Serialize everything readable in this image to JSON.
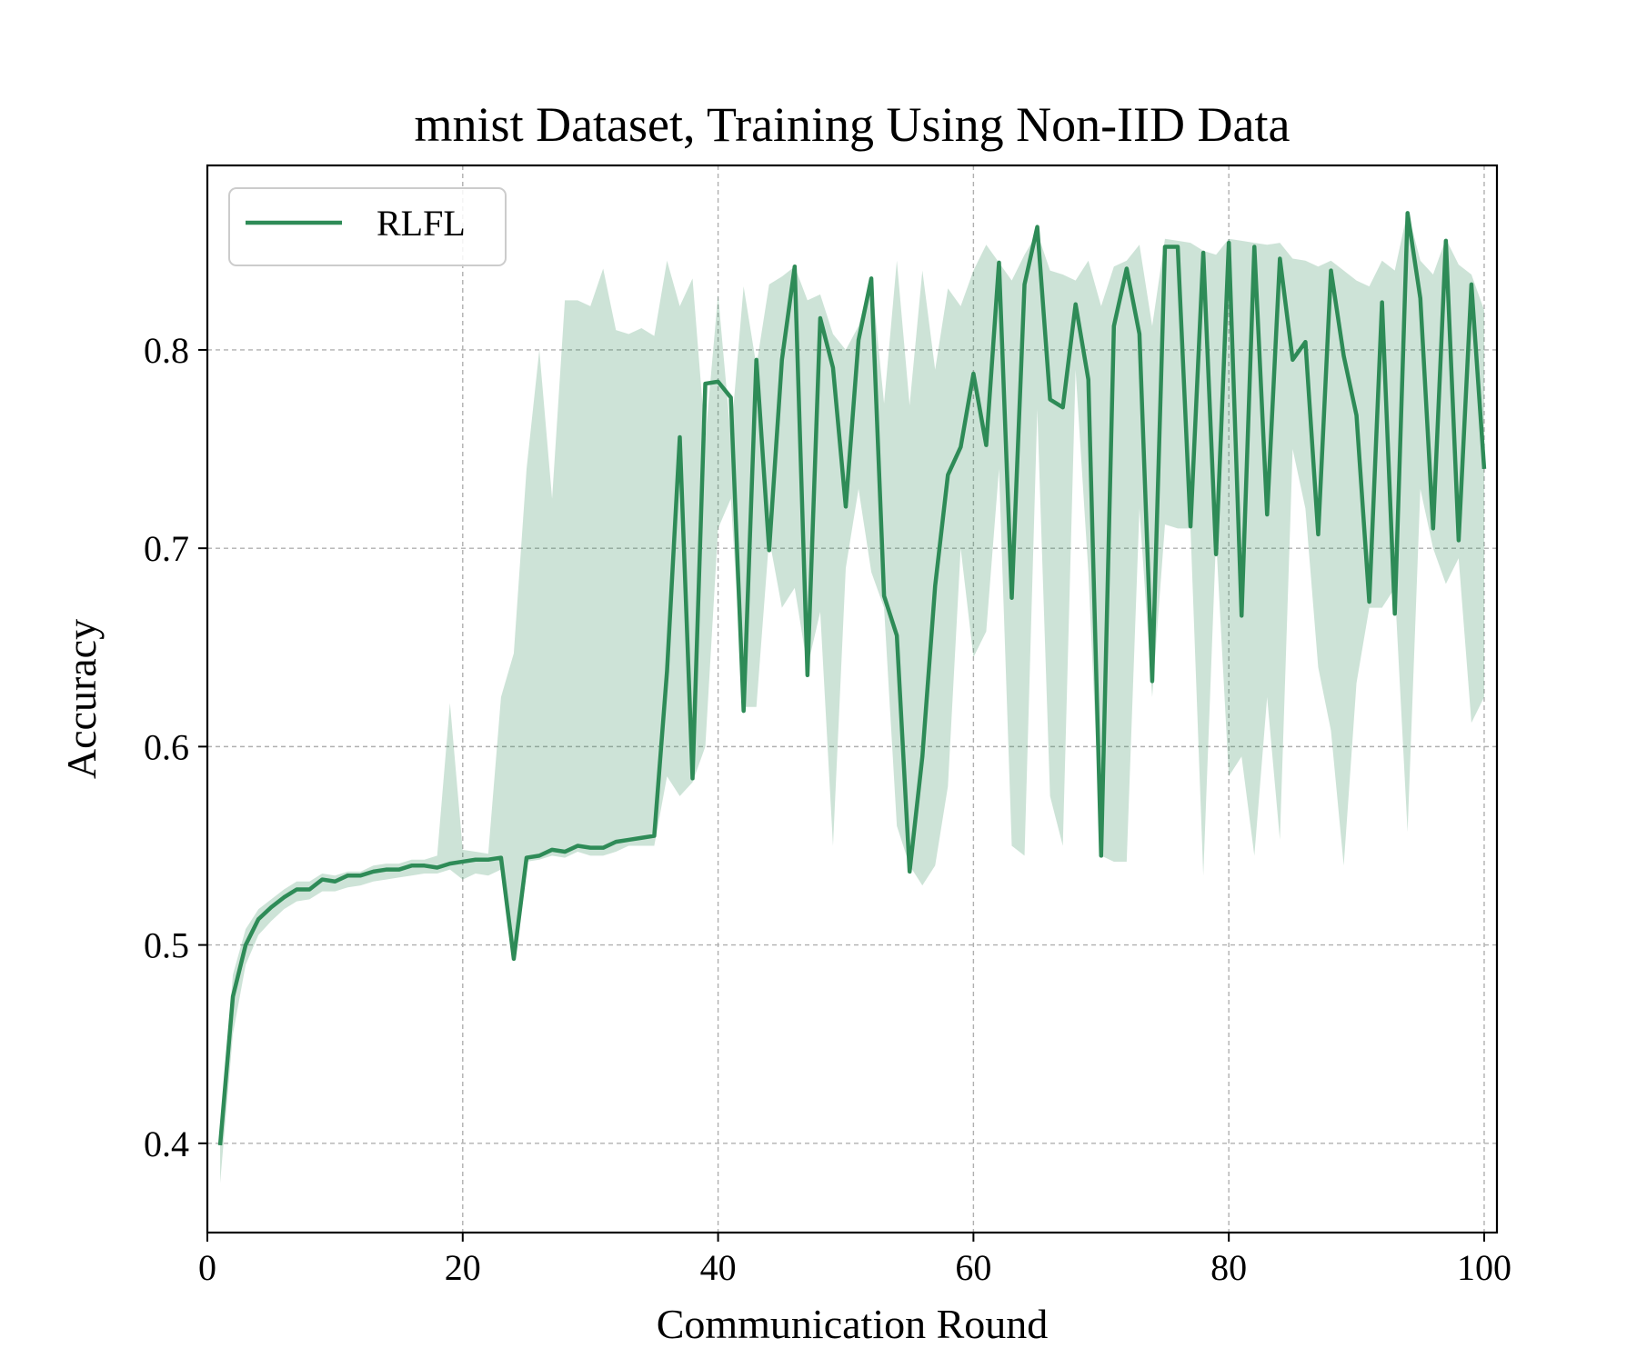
{
  "chart_data": {
    "type": "line",
    "title": "mnist Dataset, Training Using Non-IID Data",
    "xlabel": "Communication Round",
    "ylabel": "Accuracy",
    "xlim": [
      0,
      101
    ],
    "ylim": [
      0.355,
      0.893
    ],
    "xticks": [
      0,
      20,
      40,
      60,
      80,
      100
    ],
    "xtick_labels": [
      "0",
      "20",
      "40",
      "60",
      "80",
      "100"
    ],
    "yticks": [
      0.4,
      0.5,
      0.6,
      0.7,
      0.8
    ],
    "ytick_labels": [
      "0.4",
      "0.5",
      "0.6",
      "0.7",
      "0.8"
    ],
    "grid": true,
    "legend": {
      "position": "top-left",
      "entries": [
        "RLFL"
      ]
    },
    "colors": {
      "line": "#2e8b57",
      "band": "#2e8b57",
      "band_opacity": 0.24
    },
    "x": [
      1,
      2,
      3,
      4,
      5,
      6,
      7,
      8,
      9,
      10,
      11,
      12,
      13,
      14,
      15,
      16,
      17,
      18,
      19,
      20,
      21,
      22,
      23,
      24,
      25,
      26,
      27,
      28,
      29,
      30,
      31,
      32,
      33,
      34,
      35,
      36,
      37,
      38,
      39,
      40,
      41,
      42,
      43,
      44,
      45,
      46,
      47,
      48,
      49,
      50,
      51,
      52,
      53,
      54,
      55,
      56,
      57,
      58,
      59,
      60,
      61,
      62,
      63,
      64,
      65,
      66,
      67,
      68,
      69,
      70,
      71,
      72,
      73,
      74,
      75,
      76,
      77,
      78,
      79,
      80,
      81,
      82,
      83,
      84,
      85,
      86,
      87,
      88,
      89,
      90,
      91,
      92,
      93,
      94,
      95,
      96,
      97,
      98,
      99,
      100
    ],
    "series": [
      {
        "name": "RLFL",
        "values": [
          0.399,
          0.474,
          0.5,
          0.513,
          0.519,
          0.524,
          0.528,
          0.528,
          0.533,
          0.532,
          0.535,
          0.535,
          0.537,
          0.538,
          0.538,
          0.54,
          0.54,
          0.539,
          0.541,
          0.542,
          0.543,
          0.543,
          0.544,
          0.493,
          0.544,
          0.545,
          0.548,
          0.547,
          0.55,
          0.549,
          0.549,
          0.552,
          0.553,
          0.554,
          0.555,
          0.638,
          0.756,
          0.584,
          0.783,
          0.784,
          0.776,
          0.618,
          0.795,
          0.699,
          0.795,
          0.842,
          0.636,
          0.816,
          0.791,
          0.721,
          0.805,
          0.836,
          0.676,
          0.656,
          0.537,
          0.595,
          0.681,
          0.737,
          0.751,
          0.788,
          0.752,
          0.844,
          0.675,
          0.833,
          0.862,
          0.775,
          0.771,
          0.823,
          0.785,
          0.545,
          0.812,
          0.841,
          0.808,
          0.633,
          0.852,
          0.852,
          0.711,
          0.849,
          0.697,
          0.854,
          0.666,
          0.852,
          0.717,
          0.846,
          0.795,
          0.804,
          0.707,
          0.84,
          0.797,
          0.767,
          0.673,
          0.824,
          0.667,
          0.869,
          0.826,
          0.71,
          0.855,
          0.704,
          0.833,
          0.74
        ],
        "upper": [
          0.405,
          0.485,
          0.508,
          0.518,
          0.523,
          0.528,
          0.532,
          0.532,
          0.536,
          0.535,
          0.537,
          0.537,
          0.54,
          0.541,
          0.541,
          0.543,
          0.543,
          0.545,
          0.622,
          0.548,
          0.547,
          0.546,
          0.625,
          0.647,
          0.74,
          0.8,
          0.725,
          0.825,
          0.825,
          0.822,
          0.841,
          0.81,
          0.808,
          0.811,
          0.807,
          0.845,
          0.822,
          0.836,
          0.755,
          0.828,
          0.756,
          0.832,
          0.792,
          0.833,
          0.837,
          0.842,
          0.825,
          0.828,
          0.808,
          0.8,
          0.812,
          0.838,
          0.773,
          0.845,
          0.772,
          0.84,
          0.79,
          0.831,
          0.822,
          0.84,
          0.853,
          0.844,
          0.835,
          0.848,
          0.859,
          0.84,
          0.838,
          0.835,
          0.845,
          0.822,
          0.842,
          0.845,
          0.853,
          0.812,
          0.856,
          0.855,
          0.854,
          0.85,
          0.848,
          0.856,
          0.855,
          0.854,
          0.853,
          0.854,
          0.846,
          0.845,
          0.842,
          0.845,
          0.84,
          0.835,
          0.832,
          0.845,
          0.84,
          0.87,
          0.845,
          0.838,
          0.856,
          0.843,
          0.838,
          0.82
        ],
        "lower": [
          0.38,
          0.455,
          0.49,
          0.505,
          0.512,
          0.518,
          0.522,
          0.523,
          0.527,
          0.527,
          0.529,
          0.53,
          0.532,
          0.533,
          0.534,
          0.535,
          0.536,
          0.536,
          0.538,
          0.533,
          0.536,
          0.535,
          0.538,
          0.492,
          0.542,
          0.543,
          0.545,
          0.544,
          0.547,
          0.545,
          0.545,
          0.547,
          0.55,
          0.55,
          0.55,
          0.585,
          0.575,
          0.582,
          0.6,
          0.71,
          0.725,
          0.62,
          0.62,
          0.705,
          0.67,
          0.68,
          0.64,
          0.668,
          0.55,
          0.69,
          0.73,
          0.688,
          0.67,
          0.56,
          0.54,
          0.53,
          0.54,
          0.58,
          0.7,
          0.645,
          0.658,
          0.74,
          0.55,
          0.545,
          0.77,
          0.575,
          0.55,
          0.79,
          0.688,
          0.545,
          0.542,
          0.542,
          0.72,
          0.625,
          0.712,
          0.71,
          0.71,
          0.535,
          0.705,
          0.585,
          0.595,
          0.545,
          0.625,
          0.553,
          0.75,
          0.72,
          0.64,
          0.608,
          0.54,
          0.632,
          0.67,
          0.67,
          0.68,
          0.557,
          0.73,
          0.7,
          0.682,
          0.695,
          0.612,
          0.625
        ]
      }
    ]
  }
}
